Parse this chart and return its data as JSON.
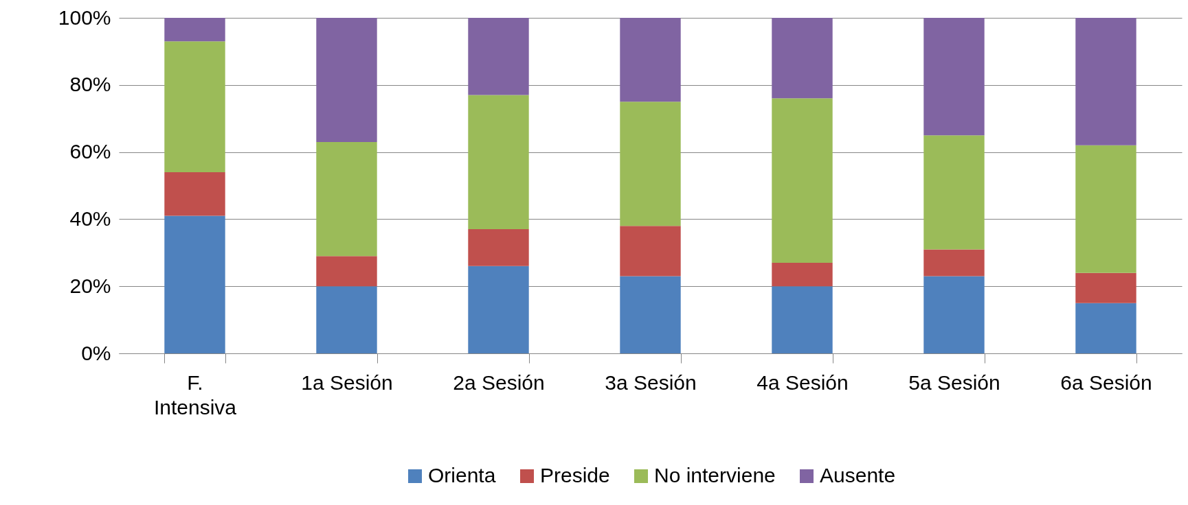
{
  "chart_data": {
    "type": "bar",
    "stacked": true,
    "categories": [
      "F. Intensiva",
      "1a Sesión",
      "2a Sesión",
      "3a Sesión",
      "4a Sesión",
      "5a Sesión",
      "6a Sesión"
    ],
    "series": [
      {
        "name": "Orienta",
        "color": "#4f81bd",
        "values": [
          41,
          20,
          26,
          23,
          20,
          23,
          15
        ]
      },
      {
        "name": "Preside",
        "color": "#c0504d",
        "values": [
          13,
          9,
          11,
          15,
          7,
          8,
          9
        ]
      },
      {
        "name": "No interviene",
        "color": "#9bbb59",
        "values": [
          39,
          34,
          40,
          37,
          49,
          34,
          38
        ]
      },
      {
        "name": "Ausente",
        "color": "#8064a2",
        "values": [
          7,
          37,
          23,
          25,
          24,
          35,
          38
        ]
      }
    ],
    "ylim": [
      0,
      100
    ],
    "yticks": [
      {
        "value": 0,
        "label": "0%"
      },
      {
        "value": 20,
        "label": "20%"
      },
      {
        "value": 40,
        "label": "40%"
      },
      {
        "value": 60,
        "label": "60%"
      },
      {
        "value": 80,
        "label": "80%"
      },
      {
        "value": 100,
        "label": "100%"
      }
    ],
    "grid": "y",
    "legend": "bottom"
  }
}
